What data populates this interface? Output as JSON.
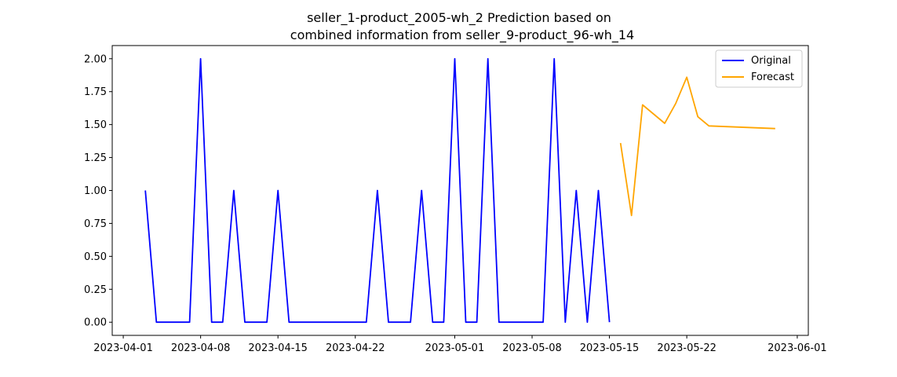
{
  "chart_data": {
    "type": "line",
    "title_lines": [
      "seller_1-product_2005-wh_2 Prediction based on",
      "combined information from seller_9-product_96-wh_14"
    ],
    "xlabel": "",
    "ylabel": "",
    "xlim": [
      "2023-03-31",
      "2023-06-02"
    ],
    "ylim": [
      -0.1,
      2.1
    ],
    "x_ticks": [
      "2023-04-01",
      "2023-04-08",
      "2023-04-15",
      "2023-04-22",
      "2023-05-01",
      "2023-05-08",
      "2023-05-15",
      "2023-05-22",
      "2023-06-01"
    ],
    "y_ticks": [
      "0.00",
      "0.25",
      "0.50",
      "0.75",
      "1.00",
      "1.25",
      "1.50",
      "1.75",
      "2.00"
    ],
    "grid": false,
    "legend_position": "top-right",
    "series": [
      {
        "name": "Original",
        "color": "#0000ff",
        "x": [
          "2023-04-03",
          "2023-04-04",
          "2023-04-05",
          "2023-04-06",
          "2023-04-07",
          "2023-04-08",
          "2023-04-09",
          "2023-04-10",
          "2023-04-11",
          "2023-04-12",
          "2023-04-13",
          "2023-04-14",
          "2023-04-15",
          "2023-04-16",
          "2023-04-17",
          "2023-04-18",
          "2023-04-19",
          "2023-04-20",
          "2023-04-21",
          "2023-04-22",
          "2023-04-23",
          "2023-04-24",
          "2023-04-25",
          "2023-04-26",
          "2023-04-27",
          "2023-04-28",
          "2023-04-29",
          "2023-04-30",
          "2023-05-01",
          "2023-05-02",
          "2023-05-03",
          "2023-05-04",
          "2023-05-05",
          "2023-05-06",
          "2023-05-07",
          "2023-05-08",
          "2023-05-09",
          "2023-05-10",
          "2023-05-11",
          "2023-05-12",
          "2023-05-13",
          "2023-05-14",
          "2023-05-15"
        ],
        "y": [
          1,
          0,
          0,
          0,
          0,
          2,
          0,
          0,
          1,
          0,
          0,
          0,
          1,
          0,
          0,
          0,
          0,
          0,
          0,
          0,
          0,
          1,
          0,
          0,
          0,
          1,
          0,
          0,
          2,
          0,
          0,
          2,
          0,
          0,
          0,
          0,
          0,
          2,
          0,
          1,
          0,
          1,
          0
        ]
      },
      {
        "name": "Forecast",
        "color": "#ffa500",
        "x": [
          "2023-05-16",
          "2023-05-17",
          "2023-05-18",
          "2023-05-20",
          "2023-05-21",
          "2023-05-22",
          "2023-05-23",
          "2023-05-24",
          "2023-05-30"
        ],
        "y": [
          1.36,
          0.81,
          1.65,
          1.51,
          1.66,
          1.86,
          1.56,
          1.49,
          1.47
        ]
      }
    ]
  }
}
